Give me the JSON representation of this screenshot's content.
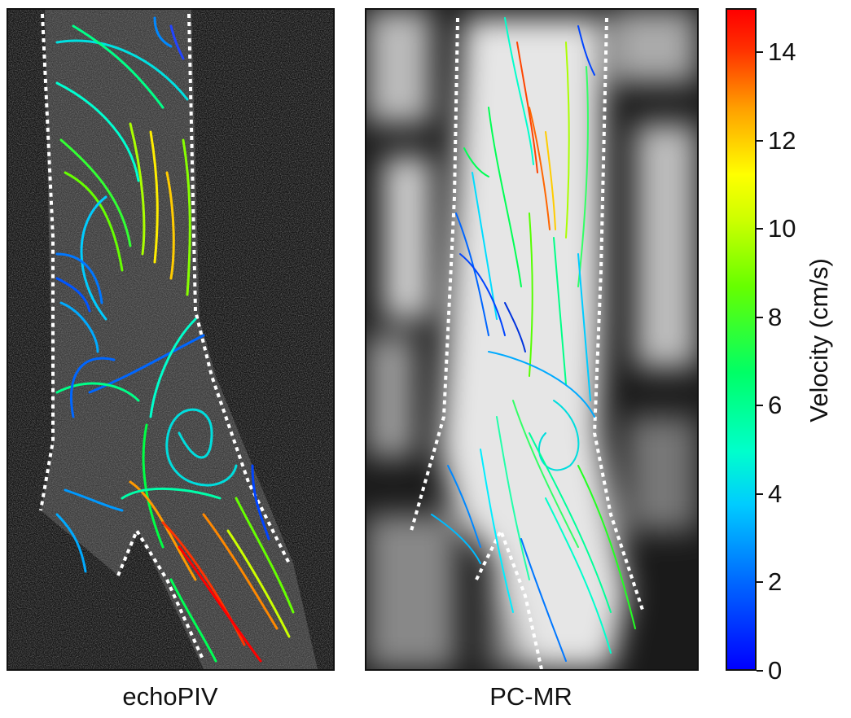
{
  "panels": {
    "echo": {
      "label": "echoPIV"
    },
    "pcmr": {
      "label": "PC-MR"
    }
  },
  "colorbar": {
    "title": "Velocity (cm/s)",
    "ticks": [
      "0",
      "2",
      "4",
      "6",
      "8",
      "10",
      "12",
      "14"
    ],
    "range": [
      0,
      15
    ],
    "colormap": "jet"
  },
  "colors": {
    "boundary": "#ffffff",
    "background_echo": "#2a2a2a",
    "background_pcmr": "#1a1a1a"
  }
}
